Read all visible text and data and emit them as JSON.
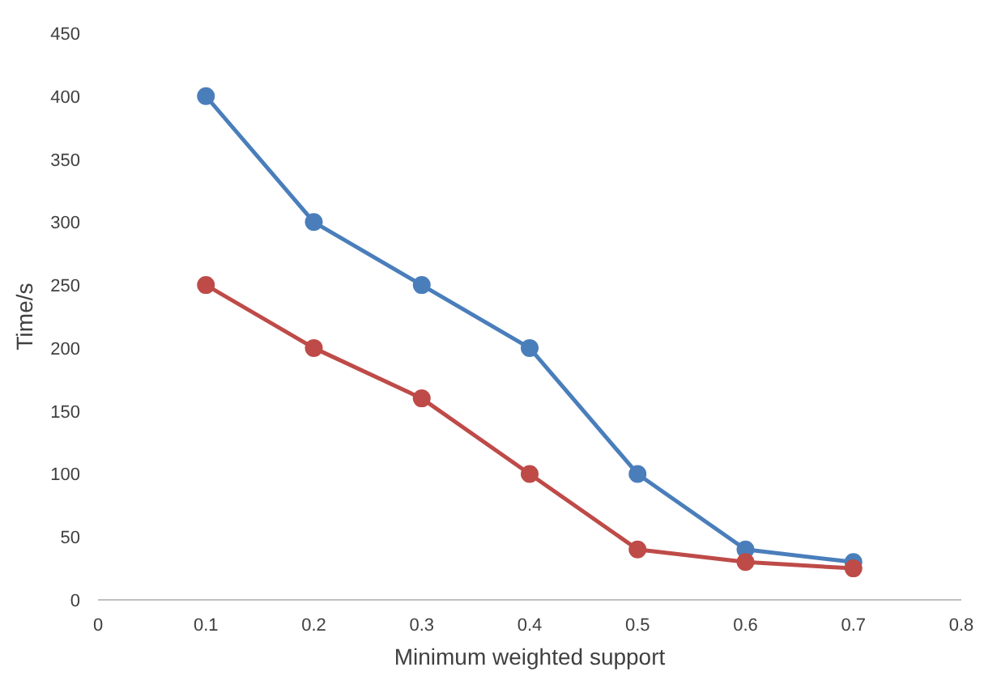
{
  "chart_data": {
    "type": "line",
    "xlabel": "Minimum weighted support",
    "ylabel": "Time/s",
    "x": [
      0.1,
      0.2,
      0.3,
      0.4,
      0.5,
      0.6,
      0.7
    ],
    "series": [
      {
        "color": "#4a7ebb",
        "values": [
          400,
          300,
          250,
          200,
          100,
          40,
          30
        ]
      },
      {
        "color": "#be4b48",
        "values": [
          250,
          200,
          160,
          100,
          40,
          30,
          25
        ]
      }
    ],
    "xlim": [
      0,
      0.8
    ],
    "xticks": [
      0,
      0.1,
      0.2,
      0.3,
      0.4,
      0.5,
      0.6,
      0.7,
      0.8
    ],
    "ylim": [
      0,
      450
    ],
    "yticks": [
      0,
      50,
      100,
      150,
      200,
      250,
      300,
      350,
      400,
      450
    ],
    "marker": "circle",
    "line_style": "solid"
  }
}
